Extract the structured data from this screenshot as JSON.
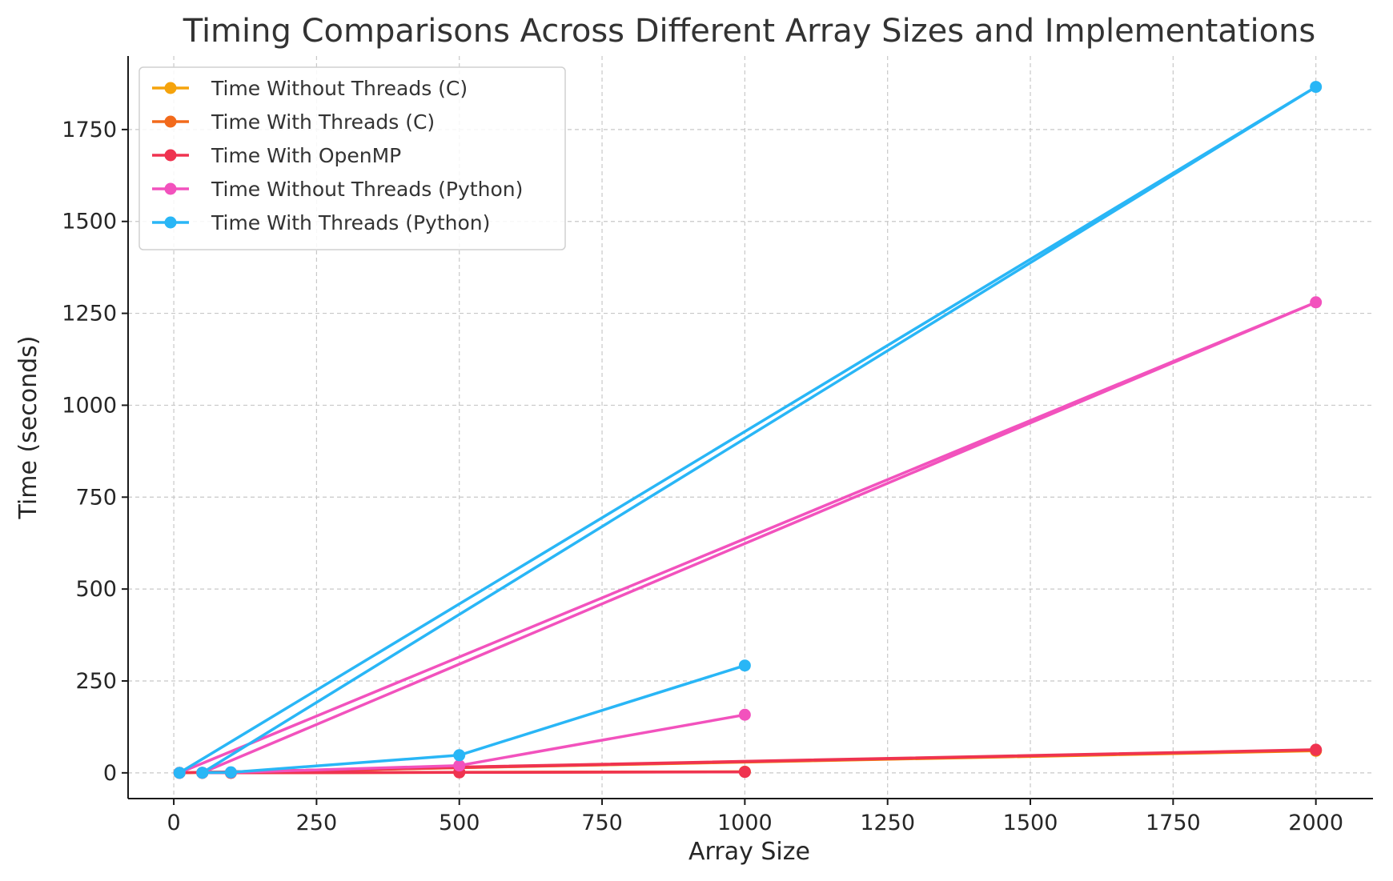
{
  "chart_data": {
    "type": "line",
    "title": "Timing Comparisons Across Different Array Sizes and Implementations",
    "xlabel": "Array Size",
    "ylabel": "Time (seconds)",
    "xlim": [
      -80,
      2100
    ],
    "ylim": [
      -70,
      1950
    ],
    "xticks": [
      0,
      250,
      500,
      750,
      1000,
      1250,
      1500,
      1750,
      2000
    ],
    "yticks": [
      0,
      250,
      500,
      750,
      1000,
      1250,
      1500,
      1750
    ],
    "grid": true,
    "legend_position": "upper-left",
    "series": [
      {
        "name": "Time Without Threads (C)",
        "color": "#f5a30c",
        "x": [
          10,
          2000,
          50,
          100,
          500,
          1000
        ],
        "y": [
          0,
          60,
          0,
          0.1,
          1.5,
          3
        ]
      },
      {
        "name": "Time With Threads (C)",
        "color": "#f26a1b",
        "x": [
          10,
          2000,
          50,
          100,
          500,
          1000
        ],
        "y": [
          0,
          61,
          0,
          0.1,
          1.6,
          3
        ]
      },
      {
        "name": "Time With OpenMP",
        "color": "#ef3350",
        "x": [
          10,
          2000,
          50,
          100,
          500,
          1000
        ],
        "y": [
          0,
          63,
          0,
          0.1,
          1.2,
          2.5
        ]
      },
      {
        "name": "Time Without Threads (Python)",
        "color": "#f252bd",
        "x": [
          10,
          2000,
          50,
          100,
          500,
          1000
        ],
        "y": [
          0,
          1280,
          0.2,
          1,
          20,
          158
        ]
      },
      {
        "name": "Time With Threads (Python)",
        "color": "#29b6f6",
        "x": [
          10,
          2000,
          50,
          100,
          500,
          1000
        ],
        "y": [
          0,
          1866,
          0.3,
          1.5,
          48,
          292
        ]
      }
    ]
  }
}
